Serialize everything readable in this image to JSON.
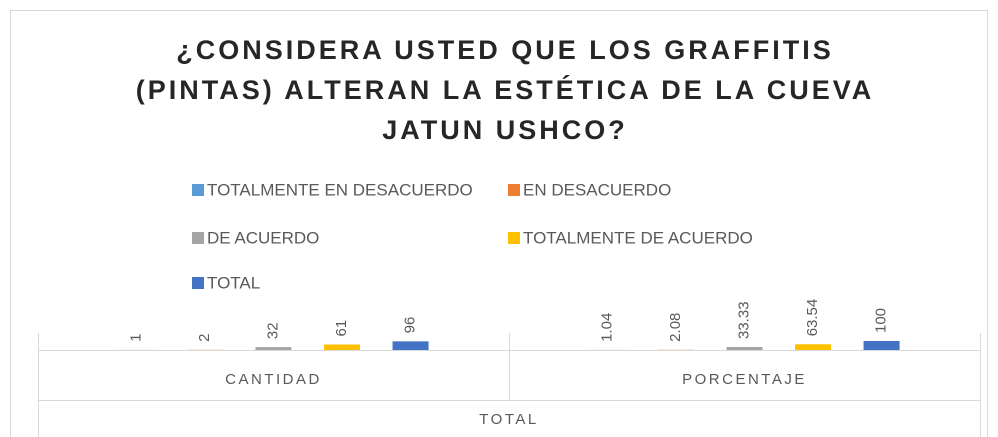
{
  "chart_data": {
    "type": "bar",
    "title": [
      "¿CONSIDERA USTED QUE LOS GRAFFITIS",
      "(PINTAS) ALTERAN LA ESTÉTICA DE LA CUEVA",
      "JATUN USHCO?"
    ],
    "categories": [
      "CANTIDAD",
      "PORCENTAJE"
    ],
    "category_group": "TOTAL",
    "series": [
      {
        "name": "TOTALMENTE EN DESACUERDO",
        "color": "#5b9bd5",
        "values": [
          1,
          1.04
        ]
      },
      {
        "name": "EN DESACUERDO",
        "color": "#ed7d31",
        "values": [
          2,
          2.08
        ]
      },
      {
        "name": "DE ACUERDO",
        "color": "#a5a5a5",
        "values": [
          32,
          33.33
        ]
      },
      {
        "name": "TOTALMENTE DE ACUERDO",
        "color": "#ffc000",
        "values": [
          61,
          63.54
        ]
      },
      {
        "name": "TOTAL",
        "color": "#4472c4",
        "values": [
          96,
          100
        ]
      }
    ],
    "ylim": [
      0,
      1000
    ],
    "legend": "top"
  }
}
